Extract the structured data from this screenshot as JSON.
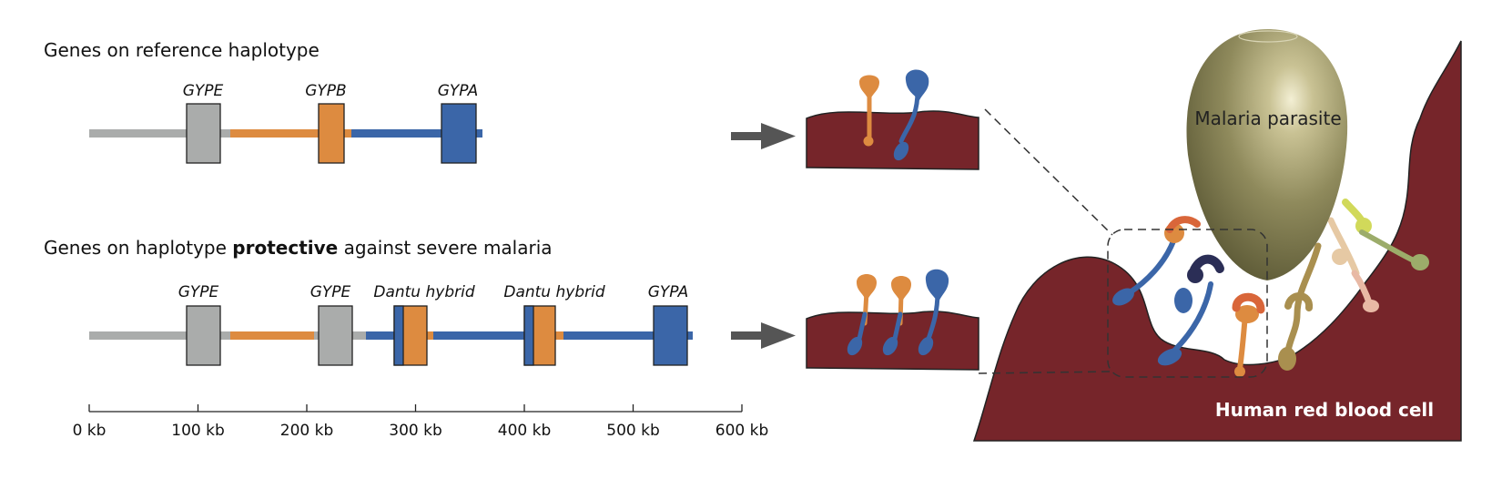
{
  "colors": {
    "grey": "#aaacab",
    "orange": "#dd8b40",
    "blue": "#3b66a8",
    "membrane": "#76252a",
    "parasite": "#8f8a5c",
    "arrow": "#555555"
  },
  "panel_top": {
    "heading": "Genes on reference haplotype",
    "genes": [
      {
        "label": "GYPE"
      },
      {
        "label": "GYPB"
      },
      {
        "label": "GYPA"
      }
    ]
  },
  "panel_bottom": {
    "heading_before": "Genes on haplotype ",
    "heading_bold": "protective",
    "heading_after": " against severe malaria",
    "genes": [
      {
        "label": "GYPE"
      },
      {
        "label": "GYPE"
      },
      {
        "label": "Dantu hybrid"
      },
      {
        "label": "Dantu hybrid"
      },
      {
        "label": "GYPA"
      }
    ]
  },
  "axis": {
    "ticks": [
      "0 kb",
      "100 kb",
      "200 kb",
      "300 kb",
      "400 kb",
      "500 kb",
      "600 kb"
    ]
  },
  "illustration": {
    "parasite_label": "Malaria parasite",
    "cell_label": "Human red blood cell"
  }
}
